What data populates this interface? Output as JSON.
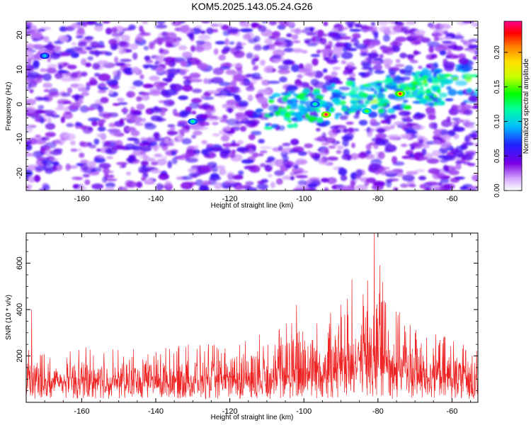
{
  "title": "KOM5.2025.143.05.24.G26",
  "chart_data": [
    {
      "type": "heatmap",
      "xlabel": "Height of straight line (km)",
      "ylabel": "Frequency (Hz)",
      "xlim": [
        -175,
        -53
      ],
      "ylim": [
        -25,
        24
      ],
      "x_ticks": [
        -160,
        -140,
        -120,
        -100,
        -80,
        -60
      ],
      "y_ticks": [
        -20,
        -10,
        0,
        10,
        20
      ],
      "colorbar": {
        "label": "Normalized spectral amplitude",
        "range": [
          0,
          0.245
        ],
        "ticks": [
          0.0,
          0.05,
          0.1,
          0.15,
          0.2
        ],
        "tick_labels": [
          "0.00",
          "0.05",
          "0.10",
          "0.15",
          "0.20"
        ],
        "colors": [
          "#ffffff",
          "#cc88ff",
          "#7a00e6",
          "#2020ff",
          "#00c0ff",
          "#00ffa0",
          "#00ff00",
          "#c8ff00",
          "#ffe000",
          "#ff8000",
          "#ff0000",
          "#ff0090"
        ],
        "placement": "right"
      },
      "hotspots": [
        {
          "x": -94,
          "y": -3,
          "value": 0.24
        },
        {
          "x": -74,
          "y": 3,
          "value": 0.23
        },
        {
          "x": -83,
          "y": -2,
          "value": 0.15
        },
        {
          "x": -97,
          "y": 0,
          "value": 0.12
        },
        {
          "x": -130,
          "y": -5,
          "value": 0.12
        },
        {
          "x": -170,
          "y": 14,
          "value": 0.1
        }
      ],
      "grid": false
    },
    {
      "type": "line",
      "xlabel": "Height of straight line (km)",
      "ylabel": "SNR (10 * v/v)",
      "xlim": [
        -175,
        -53
      ],
      "ylim": [
        0,
        730
      ],
      "x_ticks": [
        -160,
        -140,
        -120,
        -100,
        -80,
        -60
      ],
      "y_ticks": [
        200,
        400,
        600
      ],
      "series_color": "#ee2222",
      "series_profile": {
        "x": [
          -175,
          -170,
          -165,
          -160,
          -155,
          -150,
          -145,
          -140,
          -135,
          -130,
          -125,
          -120,
          -115,
          -110,
          -105,
          -100,
          -95,
          -90,
          -85,
          -80,
          -75,
          -70,
          -65,
          -60,
          -55
        ],
        "baseline": [
          100,
          95,
          95,
          100,
          100,
          100,
          95,
          100,
          100,
          100,
          110,
          105,
          115,
          130,
          140,
          160,
          165,
          180,
          200,
          230,
          200,
          150,
          135,
          120,
          115
        ],
        "envelope": [
          240,
          220,
          210,
          240,
          240,
          230,
          240,
          260,
          240,
          260,
          250,
          260,
          290,
          300,
          380,
          400,
          380,
          430,
          480,
          730,
          400,
          330,
          300,
          280,
          250
        ]
      },
      "peaks": [
        {
          "x": -81,
          "y": 730
        },
        {
          "x": -87,
          "y": 530
        },
        {
          "x": -102,
          "y": 420
        },
        {
          "x": -173.5,
          "y": 400
        }
      ],
      "grid": false
    }
  ]
}
